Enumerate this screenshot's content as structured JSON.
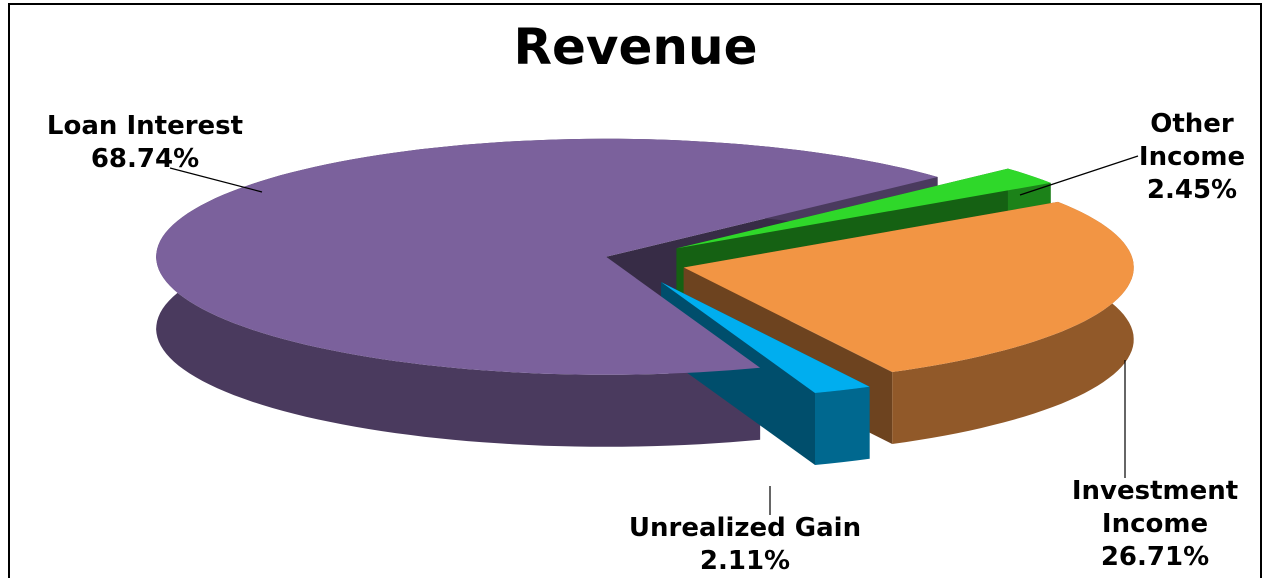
{
  "chart_data": {
    "type": "pie",
    "title": "Revenue",
    "categories": [
      "Loan Interest",
      "Other Income",
      "Investment Income",
      "Unrealized Gain"
    ],
    "values": [
      68.74,
      2.45,
      26.71,
      2.11
    ],
    "value_labels": [
      "68.74%",
      "2.45%",
      "26.71%",
      "2.11%"
    ],
    "colors": [
      "#7b619c",
      "#2fd82a",
      "#f29544",
      "#00aeef"
    ]
  }
}
